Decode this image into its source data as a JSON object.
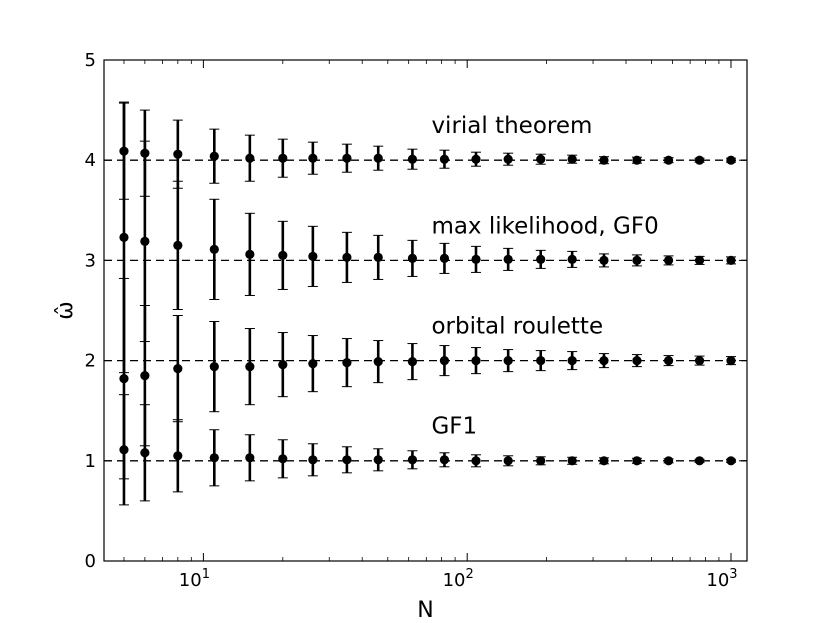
{
  "chart_data": {
    "type": "scatter",
    "title": "",
    "xlabel": "N",
    "ylabel": "ω̂",
    "xscale": "log",
    "xlim": [
      4.2,
      1150
    ],
    "ylim": [
      0,
      5
    ],
    "yticks": [
      "0",
      "1",
      "2",
      "3",
      "4",
      "5"
    ],
    "xticks": [
      {
        "base": "10",
        "exp": "1"
      },
      {
        "base": "10",
        "exp": "2"
      },
      {
        "base": "10",
        "exp": "3"
      }
    ],
    "grid": false,
    "x": [
      5,
      6,
      8,
      11,
      15,
      20,
      26,
      35,
      46,
      62,
      82,
      108,
      143,
      190,
      250,
      330,
      440,
      580,
      760,
      1000
    ],
    "series": [
      {
        "name": "virial theorem",
        "reference": 4,
        "label_x": 82,
        "label_y": 4.27,
        "y": [
          4.09,
          4.07,
          4.06,
          4.04,
          4.02,
          4.02,
          4.02,
          4.02,
          4.02,
          4.01,
          4.01,
          4.01,
          4.01,
          4.01,
          4.01,
          4.0,
          4.0,
          4.0,
          4.0,
          4.0
        ],
        "err": [
          0.48,
          0.43,
          0.34,
          0.27,
          0.23,
          0.19,
          0.16,
          0.14,
          0.12,
          0.1,
          0.09,
          0.07,
          0.06,
          0.05,
          0.04,
          0.035,
          0.03,
          0.025,
          0.02,
          0.02
        ]
      },
      {
        "name": "max likelihood, GF0",
        "reference": 3,
        "label_x": 82,
        "label_y": 3.27,
        "y": [
          3.23,
          3.19,
          3.15,
          3.11,
          3.06,
          3.05,
          3.04,
          3.03,
          3.03,
          3.02,
          3.02,
          3.01,
          3.01,
          3.01,
          3.01,
          3.0,
          3.0,
          3.0,
          3.0,
          3.0
        ],
        "err": [
          1.35,
          1.0,
          0.64,
          0.5,
          0.41,
          0.34,
          0.3,
          0.25,
          0.22,
          0.18,
          0.15,
          0.13,
          0.11,
          0.09,
          0.08,
          0.065,
          0.055,
          0.045,
          0.04,
          0.035
        ]
      },
      {
        "name": "orbital roulette",
        "reference": 2,
        "label_x": 82,
        "label_y": 2.27,
        "y": [
          1.82,
          1.85,
          1.92,
          1.94,
          1.94,
          1.96,
          1.97,
          1.98,
          1.99,
          1.99,
          2.0,
          2.0,
          2.0,
          2.0,
          2.0,
          2.0,
          2.0,
          2.0,
          2.0,
          2.0
        ],
        "err": [
          1.0,
          0.7,
          0.53,
          0.45,
          0.38,
          0.32,
          0.28,
          0.24,
          0.21,
          0.18,
          0.15,
          0.13,
          0.11,
          0.1,
          0.09,
          0.07,
          0.06,
          0.05,
          0.045,
          0.04
        ]
      },
      {
        "name": "GF1",
        "reference": 1,
        "label_x": 82,
        "label_y": 1.27,
        "y": [
          1.11,
          1.08,
          1.05,
          1.03,
          1.03,
          1.02,
          1.01,
          1.01,
          1.01,
          1.01,
          1.01,
          1.0,
          1.0,
          1.0,
          1.0,
          1.0,
          1.0,
          1.0,
          1.0,
          1.0
        ],
        "err": [
          0.55,
          0.48,
          0.36,
          0.28,
          0.23,
          0.19,
          0.16,
          0.13,
          0.11,
          0.09,
          0.07,
          0.06,
          0.05,
          0.04,
          0.035,
          0.03,
          0.025,
          0.02,
          0.015,
          0.015
        ]
      }
    ]
  }
}
